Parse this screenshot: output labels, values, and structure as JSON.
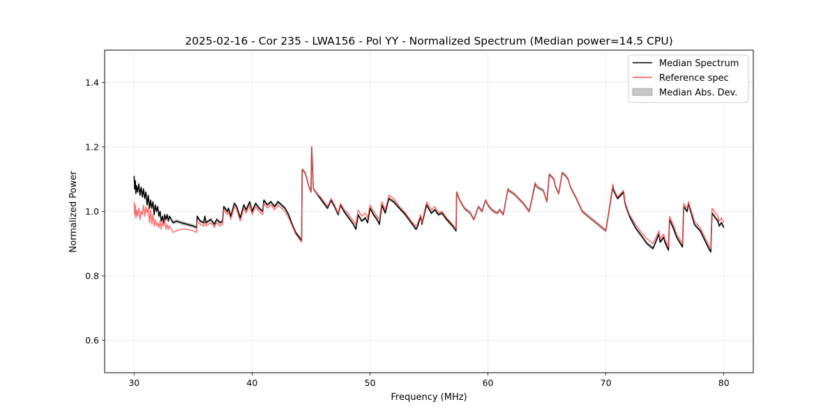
{
  "chart_data": {
    "type": "line",
    "title": "2025-02-16 - Cor 235 - LWA156 - Pol YY - Normalized Spectrum (Median power=14.5 CPU)",
    "xlabel": "Frequency (MHz)",
    "ylabel": "Normalized Power",
    "xlim": [
      27.5,
      82.5
    ],
    "ylim": [
      0.5,
      1.5
    ],
    "xticks": [
      30,
      40,
      50,
      60,
      70,
      80
    ],
    "xtick_labels": [
      "30",
      "40",
      "50",
      "60",
      "70",
      "80"
    ],
    "yticks": [
      0.6,
      0.8,
      1.0,
      1.2,
      1.4
    ],
    "ytick_labels": [
      "0.6",
      "0.8",
      "1.0",
      "1.2",
      "1.4"
    ],
    "grid": true,
    "legend_position": "top-right",
    "legend": [
      "Median Spectrum",
      "Reference spec",
      "Median Abs. Dev."
    ],
    "colors": {
      "median": "#000000",
      "reference": "#ff5050",
      "mad": "#b4b4b4"
    },
    "mad_halfwidth": 0.006,
    "series": [
      {
        "name": "Median Spectrum",
        "x": [
          30.0,
          30.05,
          30.1,
          30.15,
          30.2,
          30.3,
          30.4,
          30.5,
          30.6,
          30.7,
          30.8,
          30.9,
          31.0,
          31.1,
          31.2,
          31.3,
          31.4,
          31.5,
          31.6,
          31.7,
          31.8,
          31.9,
          32.0,
          32.1,
          32.2,
          32.3,
          32.4,
          32.5,
          32.6,
          32.7,
          32.8,
          32.9,
          33.0,
          33.3,
          33.6,
          34.0,
          34.5,
          35.0,
          35.3,
          35.35,
          35.6,
          35.9,
          36.0,
          36.1,
          36.5,
          36.8,
          37.0,
          37.3,
          37.5,
          37.6,
          37.9,
          38.0,
          38.2,
          38.5,
          38.7,
          39.0,
          39.3,
          39.5,
          39.8,
          40.0,
          40.3,
          40.6,
          40.9,
          41.0,
          41.3,
          41.6,
          41.9,
          42.2,
          42.5,
          42.8,
          43.1,
          43.4,
          43.7,
          44.0,
          44.2,
          44.25,
          44.5,
          44.8,
          45.0,
          45.05,
          45.2,
          45.5,
          45.8,
          46.1,
          46.4,
          46.7,
          47.0,
          47.3,
          47.5,
          47.8,
          48.0,
          48.3,
          48.6,
          48.8,
          49.0,
          49.3,
          49.6,
          49.8,
          50.0,
          50.3,
          50.6,
          50.8,
          51.0,
          51.3,
          51.6,
          52.0,
          52.5,
          53.0,
          53.5,
          53.9,
          54.0,
          54.3,
          54.4,
          54.8,
          55.2,
          55.5,
          55.8,
          56.1,
          56.5,
          57.0,
          57.3,
          57.35,
          57.6,
          58.0,
          58.5,
          58.8,
          59.2,
          59.5,
          59.8,
          60.0,
          60.2,
          60.5,
          60.8,
          61.0,
          61.3,
          61.7,
          61.75,
          62.2,
          62.6,
          63.0,
          63.5,
          64.0,
          64.1,
          64.2,
          64.7,
          65.0,
          65.2,
          65.6,
          65.7,
          66.0,
          66.3,
          66.6,
          66.8,
          67.0,
          67.5,
          68.0,
          69.0,
          70.0,
          70.6,
          70.65,
          71.0,
          71.5,
          71.6,
          71.7,
          72.0,
          72.5,
          73.0,
          73.5,
          74.0,
          74.5,
          74.6,
          74.9,
          75.0,
          75.3,
          75.4,
          75.7,
          76.0,
          76.5,
          76.6,
          76.9,
          77.0,
          77.5,
          78.0,
          78.8,
          78.9,
          79.0,
          79.5,
          79.6,
          79.8,
          80.0
        ],
        "y": [
          1.11,
          1.07,
          1.095,
          1.055,
          1.08,
          1.06,
          1.085,
          1.05,
          1.075,
          1.045,
          1.07,
          1.04,
          1.06,
          1.02,
          1.05,
          1.01,
          1.035,
          1.01,
          1.03,
          0.99,
          1.02,
          1.0,
          1.015,
          0.985,
          1.0,
          0.97,
          0.985,
          0.965,
          0.99,
          0.975,
          0.99,
          0.97,
          0.985,
          0.965,
          0.97,
          0.965,
          0.96,
          0.955,
          0.95,
          0.985,
          0.97,
          0.965,
          0.985,
          0.965,
          0.975,
          0.96,
          0.975,
          0.965,
          0.97,
          1.015,
          1.0,
          1.01,
          0.985,
          1.025,
          1.015,
          0.98,
          1.02,
          1.005,
          1.03,
          1.0,
          1.025,
          1.01,
          1.0,
          1.035,
          1.02,
          1.03,
          1.015,
          1.03,
          1.02,
          1.01,
          0.99,
          0.96,
          0.935,
          0.92,
          0.91,
          1.13,
          1.12,
          1.08,
          1.06,
          1.2,
          1.07,
          1.055,
          1.04,
          1.025,
          1.01,
          1.035,
          1.015,
          0.99,
          1.02,
          1.0,
          0.99,
          0.975,
          0.96,
          0.945,
          0.99,
          0.97,
          0.98,
          0.965,
          1.01,
          0.99,
          0.975,
          0.96,
          1.02,
          0.995,
          1.04,
          1.03,
          1.01,
          0.99,
          0.965,
          0.945,
          0.95,
          0.985,
          0.96,
          1.02,
          0.995,
          1.005,
          0.99,
          0.995,
          0.975,
          0.955,
          0.94,
          1.06,
          1.035,
          1.01,
          0.995,
          0.975,
          1.015,
          1.0,
          1.035,
          1.02,
          1.01,
          1.0,
          0.995,
          1.005,
          0.99,
          1.07,
          1.065,
          1.055,
          1.04,
          1.025,
          1.0,
          1.085,
          1.08,
          1.075,
          1.065,
          1.03,
          1.115,
          1.1,
          1.08,
          1.055,
          1.12,
          1.11,
          1.1,
          1.075,
          1.04,
          1.0,
          0.97,
          0.94,
          1.08,
          1.065,
          1.04,
          1.06,
          1.03,
          1.015,
          0.985,
          0.95,
          0.925,
          0.9,
          0.885,
          0.93,
          0.905,
          0.92,
          0.905,
          0.88,
          0.975,
          0.95,
          0.92,
          0.89,
          1.015,
          1.0,
          1.025,
          0.96,
          0.94,
          0.88,
          0.875,
          0.995,
          0.97,
          0.955,
          0.965,
          0.95
        ]
      },
      {
        "name": "Reference spec",
        "x": [
          30.0,
          30.05,
          30.1,
          30.15,
          30.2,
          30.3,
          30.4,
          30.5,
          30.6,
          30.7,
          30.8,
          30.9,
          31.0,
          31.1,
          31.2,
          31.3,
          31.4,
          31.5,
          31.6,
          31.7,
          31.8,
          31.9,
          32.0,
          32.1,
          32.2,
          32.3,
          32.4,
          32.5,
          32.6,
          32.7,
          32.8,
          32.9,
          33.0,
          33.3,
          33.6,
          34.0,
          34.5,
          35.0,
          35.3,
          35.35,
          35.6,
          35.9,
          36.0,
          36.1,
          36.5,
          36.8,
          37.0,
          37.3,
          37.5,
          37.6,
          37.9,
          38.0,
          38.2,
          38.5,
          38.7,
          39.0,
          39.3,
          39.5,
          39.8,
          40.0,
          40.3,
          40.6,
          40.9,
          41.0,
          41.3,
          41.6,
          41.9,
          42.2,
          42.5,
          42.8,
          43.1,
          43.4,
          43.7,
          44.0,
          44.2,
          44.25,
          44.5,
          44.8,
          45.0,
          45.05,
          45.2,
          45.5,
          45.8,
          46.1,
          46.4,
          46.7,
          47.0,
          47.3,
          47.5,
          47.8,
          48.0,
          48.3,
          48.6,
          48.8,
          49.0,
          49.3,
          49.6,
          49.8,
          50.0,
          50.3,
          50.6,
          50.8,
          51.0,
          51.3,
          51.6,
          52.0,
          52.5,
          53.0,
          53.5,
          53.9,
          54.0,
          54.3,
          54.4,
          54.8,
          55.2,
          55.5,
          55.8,
          56.1,
          56.5,
          57.0,
          57.3,
          57.35,
          57.6,
          58.0,
          58.5,
          58.8,
          59.2,
          59.5,
          59.8,
          60.0,
          60.2,
          60.5,
          60.8,
          61.0,
          61.3,
          61.7,
          61.75,
          62.2,
          62.6,
          63.0,
          63.5,
          64.0,
          64.1,
          64.2,
          64.7,
          65.0,
          65.2,
          65.6,
          65.7,
          66.0,
          66.3,
          66.6,
          66.8,
          67.0,
          67.5,
          68.0,
          69.0,
          70.0,
          70.6,
          70.65,
          71.0,
          71.5,
          71.6,
          71.7,
          72.0,
          72.5,
          73.0,
          73.5,
          74.0,
          74.5,
          74.6,
          74.9,
          75.0,
          75.3,
          75.4,
          75.7,
          76.0,
          76.5,
          76.6,
          76.9,
          77.0,
          77.5,
          78.0,
          78.8,
          78.9,
          79.0,
          79.5,
          79.6,
          79.8,
          80.0
        ],
        "y": [
          1.03,
          0.99,
          1.02,
          0.98,
          1.005,
          0.985,
          1.01,
          0.975,
          1.0,
          0.99,
          1.02,
          0.985,
          1.015,
          0.995,
          1.01,
          0.965,
          1.005,
          0.96,
          0.99,
          0.955,
          0.975,
          0.955,
          0.965,
          0.95,
          0.97,
          0.945,
          0.965,
          0.955,
          0.975,
          0.945,
          0.96,
          0.945,
          0.955,
          0.935,
          0.94,
          0.945,
          0.945,
          0.94,
          0.935,
          0.97,
          0.96,
          0.955,
          0.97,
          0.955,
          0.965,
          0.95,
          0.965,
          0.955,
          0.96,
          1.005,
          0.99,
          1.0,
          0.975,
          1.015,
          1.005,
          0.97,
          1.01,
          0.995,
          1.02,
          0.99,
          1.015,
          1.0,
          0.99,
          1.025,
          1.01,
          1.02,
          1.005,
          1.02,
          1.01,
          1.0,
          0.98,
          0.955,
          0.93,
          0.915,
          0.905,
          1.13,
          1.12,
          1.08,
          1.06,
          1.2,
          1.07,
          1.055,
          1.045,
          1.03,
          1.015,
          1.04,
          1.02,
          0.995,
          1.025,
          1.005,
          1.0,
          0.985,
          0.97,
          0.96,
          1.005,
          0.985,
          0.995,
          0.98,
          1.02,
          1.0,
          0.985,
          0.975,
          1.03,
          1.005,
          1.05,
          1.04,
          1.015,
          0.995,
          0.97,
          0.955,
          0.96,
          0.99,
          0.965,
          1.03,
          1.005,
          1.015,
          0.995,
          1.0,
          0.98,
          0.96,
          0.945,
          1.06,
          1.035,
          1.01,
          0.995,
          0.975,
          1.015,
          1.0,
          1.035,
          1.02,
          1.01,
          1.0,
          0.995,
          1.005,
          0.99,
          1.07,
          1.065,
          1.055,
          1.04,
          1.025,
          1.0,
          1.09,
          1.08,
          1.075,
          1.065,
          1.03,
          1.115,
          1.1,
          1.08,
          1.055,
          1.12,
          1.11,
          1.1,
          1.075,
          1.04,
          1.0,
          0.97,
          0.94,
          1.085,
          1.07,
          1.045,
          1.065,
          1.035,
          1.02,
          0.99,
          0.96,
          0.935,
          0.915,
          0.9,
          0.94,
          0.915,
          0.93,
          0.915,
          0.89,
          0.985,
          0.96,
          0.93,
          0.9,
          1.025,
          1.01,
          1.03,
          0.97,
          0.95,
          0.89,
          0.885,
          1.01,
          0.985,
          0.97,
          0.98,
          0.965
        ]
      }
    ]
  }
}
